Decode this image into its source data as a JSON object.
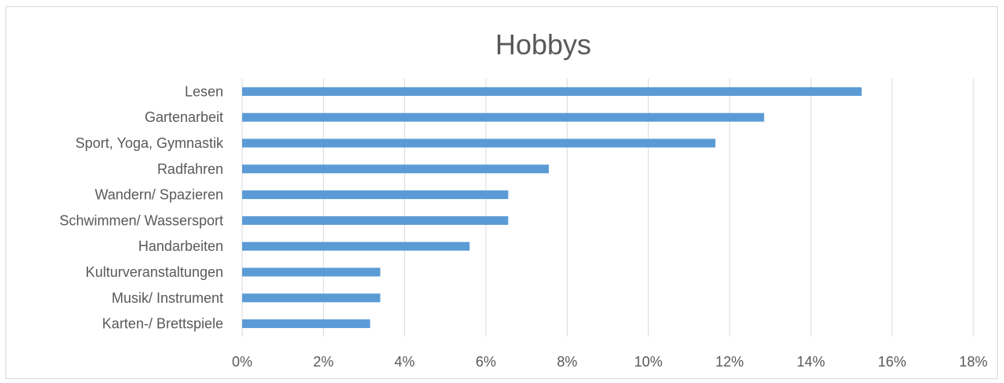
{
  "chart_data": {
    "type": "bar",
    "orientation": "horizontal",
    "title": "Hobbys",
    "categories": [
      "Lesen",
      "Gartenarbeit",
      "Sport, Yoga, Gymnastik",
      "Radfahren",
      "Wandern/ Spazieren",
      "Schwimmen/ Wassersport",
      "Handarbeiten",
      "Kulturveranstaltungen",
      "Musik/ Instrument ",
      "Karten-/ Brettspiele"
    ],
    "values": [
      15.25,
      12.85,
      11.65,
      7.55,
      6.55,
      6.55,
      5.6,
      3.4,
      3.4,
      3.15
    ],
    "xlim": [
      0,
      18
    ],
    "xticks": [
      0,
      2,
      4,
      6,
      8,
      10,
      12,
      14,
      16,
      18
    ],
    "xtick_labels": [
      "0%",
      "2%",
      "4%",
      "6%",
      "8%",
      "10%",
      "12%",
      "14%",
      "16%",
      "18%"
    ],
    "xlabel": "",
    "ylabel": "",
    "grid": "vertical",
    "legend": "none",
    "bar_color": "#5b9bd5",
    "grid_color": "#d9d9d9",
    "text_color": "#595959"
  }
}
